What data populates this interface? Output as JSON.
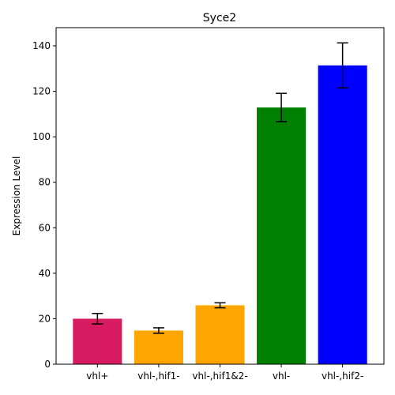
{
  "chart_data": {
    "type": "bar",
    "title": "Syce2",
    "xlabel": "",
    "ylabel": "Expression Level",
    "categories": [
      "vhl+",
      "vhl-,hif1-",
      "vhl-,hif1&2-",
      "vhl-",
      "vhl-,hif2-"
    ],
    "values": [
      20.0,
      14.8,
      25.9,
      112.9,
      131.4
    ],
    "errors": [
      2.3,
      1.2,
      1.1,
      6.2,
      9.9
    ],
    "colors": [
      "#d81b60",
      "#ffa500",
      "#ffa500",
      "#008000",
      "#0000ff"
    ],
    "ylim": [
      0,
      148
    ],
    "yticks": [
      0,
      20,
      40,
      60,
      80,
      100,
      120,
      140
    ],
    "grid": false,
    "legend": "none"
  }
}
